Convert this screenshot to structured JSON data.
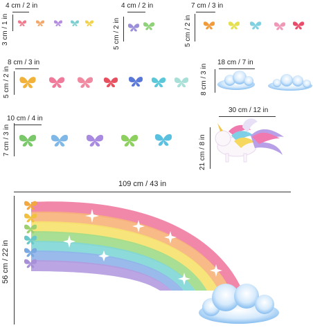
{
  "dims": {
    "g1_w": "4 cm / 2 in",
    "g1_h": "3 cm / 1 in",
    "g2_w": "4 cm / 2 in",
    "g2_h": "5 cm / 2 in",
    "g3_w": "7 cm / 3 in",
    "g3_h": "5 cm / 2 in",
    "g4_w": "8 cm / 3 in",
    "g4_h": "5 cm / 2 in",
    "cloud_w": "18 cm / 7 in",
    "cloud_h": "8 cm / 3 in",
    "g5_w": "10 cm / 4 in",
    "g5_h": "7 cm / 3 in",
    "unicorn_w": "30 cm / 12 in",
    "unicorn_h": "21 cm / 8 in",
    "rainbow_w": "109 cm / 43 in",
    "rainbow_h": "56 cm / 22 in"
  },
  "colors": {
    "rainbow": [
      "#f07aa0",
      "#f7b27a",
      "#f6e26e",
      "#9fdc8a",
      "#7fd6d6",
      "#8fb3ea",
      "#b49be0"
    ],
    "cloud": "#cfe6fb",
    "cloud_shade": "#8fc1ee"
  },
  "icons": [
    "butterfly-icon",
    "cloud-icon",
    "unicorn-icon",
    "rainbow-icon",
    "sparkle-icon"
  ]
}
